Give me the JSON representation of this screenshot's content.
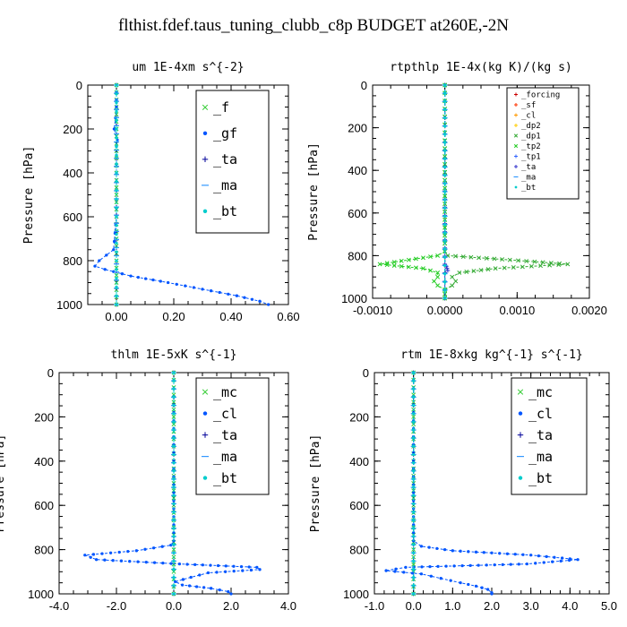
{
  "figure_title": "flthist.fdef.taus_tuning_clubb_c8p  BUDGET at260E,-2N",
  "chart_data": [
    {
      "type": "line",
      "title": "um  1E-4xm s^{-2}",
      "ylabel": "Pressure [hPa]",
      "xlim": [
        -0.1,
        0.6
      ],
      "ylim": [
        1000,
        0
      ],
      "xticks": [
        "0.00",
        "0.20",
        "0.40",
        "0.60"
      ],
      "xtick_values": [
        0,
        0.2,
        0.4,
        0.6
      ],
      "yticks": [
        "0",
        "200",
        "400",
        "600",
        "800",
        "1000"
      ],
      "ytick_values": [
        0,
        200,
        400,
        600,
        800,
        1000
      ],
      "legend": {
        "position": "top-right",
        "items": [
          "_f",
          "_gf",
          "_ta",
          "_ma",
          "_bt"
        ]
      },
      "series": [
        {
          "name": "_f",
          "color": "#33cc33",
          "marker": "x",
          "p": [
            0,
            100,
            200,
            300,
            400,
            500,
            600,
            700,
            800,
            900,
            1000
          ],
          "v": [
            0,
            0,
            0,
            0,
            0,
            0,
            0,
            0,
            0,
            0,
            0
          ]
        },
        {
          "name": "_gf",
          "color": "#0055ff",
          "marker": "dot",
          "p": [
            0,
            100,
            150,
            200,
            250,
            280,
            400,
            600,
            750,
            800,
            825,
            840,
            870,
            900,
            930,
            960,
            985,
            1000
          ],
          "v": [
            0,
            0,
            -0.003,
            -0.008,
            0.003,
            0,
            0,
            0,
            -0.01,
            -0.06,
            -0.075,
            -0.04,
            0.05,
            0.18,
            0.3,
            0.42,
            0.5,
            0.53
          ]
        },
        {
          "name": "_ta",
          "color": "#000099",
          "marker": "plus",
          "p": [
            0,
            1000
          ],
          "v": [
            0,
            0
          ]
        },
        {
          "name": "_ma",
          "color": "#3399ff",
          "marker": "dash",
          "p": [
            0,
            1000
          ],
          "v": [
            0,
            0
          ]
        },
        {
          "name": "_bt",
          "color": "#00cccc",
          "marker": "dot",
          "p": [
            0,
            200,
            400,
            600,
            800,
            1000
          ],
          "v": [
            0,
            0,
            0,
            0,
            0,
            0
          ]
        }
      ]
    },
    {
      "type": "line",
      "title": "rtpthlp  1E-4x(kg K)/(kg s)",
      "ylabel": "Pressure [hPa]",
      "xlim": [
        -0.001,
        0.002
      ],
      "ylim": [
        1000,
        0
      ],
      "xticks": [
        "-0.0010",
        "0.0000",
        "0.0010",
        "0.0020"
      ],
      "xtick_values": [
        -0.001,
        0,
        0.001,
        0.002
      ],
      "yticks": [
        "0",
        "200",
        "400",
        "600",
        "800",
        "1000"
      ],
      "ytick_values": [
        0,
        200,
        400,
        600,
        800,
        1000
      ],
      "legend": {
        "position": "top-right",
        "items": [
          "_forcing",
          "_sf",
          "_cl",
          "_dp2",
          "_dp1",
          "_tp2",
          "_tp1",
          "_ta",
          "_ma",
          "_bt"
        ]
      },
      "series": [
        {
          "name": "_forcing",
          "color": "#cc0000",
          "marker": "plus",
          "p": [
            0,
            1000
          ],
          "v": [
            0,
            0
          ]
        },
        {
          "name": "_sf",
          "color": "#ff3300",
          "marker": "plus",
          "p": [
            0,
            1000
          ],
          "v": [
            0,
            0
          ]
        },
        {
          "name": "_cl",
          "color": "#ff9900",
          "marker": "plus",
          "p": [
            0,
            1000
          ],
          "v": [
            0,
            0
          ]
        },
        {
          "name": "_dp2",
          "color": "#ffcc00",
          "marker": "plus",
          "p": [
            0,
            1000
          ],
          "v": [
            0,
            0
          ]
        },
        {
          "name": "_dp1",
          "color": "#33aa33",
          "marker": "x",
          "p": [
            0,
            780,
            800,
            820,
            840,
            850,
            860,
            880,
            900,
            920,
            940,
            960,
            980,
            1000
          ],
          "v": [
            0,
            0,
            4e-05,
            0.0009,
            0.0017,
            0.0012,
            0.0007,
            0.0002,
            0.0001,
            0.00015,
            0.0001,
            0,
            0,
            0
          ]
        },
        {
          "name": "_tp2",
          "color": "#22cc22",
          "marker": "x",
          "p": [
            0,
            780,
            800,
            820,
            840,
            850,
            860,
            880,
            900,
            920,
            940,
            960,
            980,
            1000
          ],
          "v": [
            0,
            0,
            -0.0001,
            -0.0005,
            -0.0009,
            -0.0006,
            -0.0003,
            -0.0001,
            -0.0001,
            -0.00015,
            -0.0001,
            0,
            0,
            0
          ]
        },
        {
          "name": "_tp1",
          "color": "#3366ff",
          "marker": "plus",
          "p": [
            0,
            1000
          ],
          "v": [
            0,
            0
          ]
        },
        {
          "name": "_ta",
          "color": "#3333cc",
          "marker": "plus",
          "p": [
            0,
            840,
            850,
            860,
            870,
            880,
            1000
          ],
          "v": [
            0,
            0,
            2e-05,
            3e-05,
            4e-05,
            0,
            0
          ]
        },
        {
          "name": "_ma",
          "color": "#3399ff",
          "marker": "dash",
          "p": [
            0,
            1000
          ],
          "v": [
            0,
            0
          ]
        },
        {
          "name": "_bt",
          "color": "#00cccc",
          "marker": "dot",
          "p": [
            0,
            1000
          ],
          "v": [
            0,
            0
          ]
        }
      ]
    },
    {
      "type": "line",
      "title": "thlm  1E-5xK s^{-1}",
      "ylabel": "Pressure [hPa]",
      "xlim": [
        -4,
        4
      ],
      "ylim": [
        1000,
        0
      ],
      "xticks": [
        "-4.0",
        "-2.0",
        "0.0",
        "2.0",
        "4.0"
      ],
      "xtick_values": [
        -4,
        -2,
        0,
        2,
        4
      ],
      "yticks": [
        "0",
        "200",
        "400",
        "600",
        "800",
        "1000"
      ],
      "ytick_values": [
        0,
        200,
        400,
        600,
        800,
        1000
      ],
      "legend": {
        "position": "top-right",
        "items": [
          "_mc",
          "_cl",
          "_ta",
          "_ma",
          "_bt"
        ]
      },
      "series": [
        {
          "name": "_mc",
          "color": "#33cc33",
          "marker": "x",
          "p": [
            0,
            100,
            200,
            300,
            400,
            500,
            600,
            700,
            800,
            900,
            1000
          ],
          "v": [
            0,
            0,
            0,
            0,
            0,
            0,
            0,
            0,
            0,
            0,
            0
          ]
        },
        {
          "name": "_cl",
          "color": "#0055ff",
          "marker": "dot",
          "p": [
            0,
            760,
            780,
            805,
            825,
            845,
            865,
            880,
            890,
            905,
            925,
            945,
            960,
            975,
            990,
            1000
          ],
          "v": [
            0,
            0,
            -0.1,
            -1.3,
            -3.1,
            -2.7,
            0.2,
            2.9,
            3.0,
            1.2,
            0.6,
            0.05,
            0.3,
            1.3,
            1.9,
            2.0
          ]
        },
        {
          "name": "_ta",
          "color": "#000099",
          "marker": "plus",
          "p": [
            0,
            1000
          ],
          "v": [
            0,
            0
          ]
        },
        {
          "name": "_ma",
          "color": "#3399ff",
          "marker": "dash",
          "p": [
            0,
            1000
          ],
          "v": [
            0,
            0
          ]
        },
        {
          "name": "_bt",
          "color": "#00cccc",
          "marker": "dot",
          "p": [
            0,
            1000
          ],
          "v": [
            0,
            0
          ]
        }
      ]
    },
    {
      "type": "line",
      "title": "rtm  1E-8xkg kg^{-1} s^{-1}",
      "ylabel": "Pressure [hPa]",
      "xlim": [
        -1,
        5
      ],
      "ylim": [
        1000,
        0
      ],
      "xticks": [
        "-1.0",
        "0.0",
        "1.0",
        "2.0",
        "3.0",
        "4.0",
        "5.0"
      ],
      "xtick_values": [
        -1,
        0,
        1,
        2,
        3,
        4,
        5
      ],
      "yticks": [
        "0",
        "200",
        "400",
        "600",
        "800",
        "1000"
      ],
      "ytick_values": [
        0,
        200,
        400,
        600,
        800,
        1000
      ],
      "legend": {
        "position": "top-right",
        "items": [
          "_mc",
          "_cl",
          "_ta",
          "_ma",
          "_bt"
        ]
      },
      "series": [
        {
          "name": "_mc",
          "color": "#33cc33",
          "marker": "x",
          "p": [
            0,
            100,
            200,
            300,
            400,
            500,
            600,
            700,
            800,
            900,
            1000
          ],
          "v": [
            0,
            0,
            0,
            0,
            0,
            0,
            0,
            0,
            0,
            0,
            0
          ]
        },
        {
          "name": "_cl",
          "color": "#0055ff",
          "marker": "dot",
          "p": [
            0,
            760,
            785,
            805,
            825,
            845,
            865,
            880,
            895,
            910,
            930,
            950,
            965,
            980,
            995,
            1000
          ],
          "v": [
            0,
            0,
            0.2,
            1.0,
            3.0,
            4.2,
            2.9,
            -0.2,
            -0.7,
            0.2,
            0.7,
            1.2,
            1.6,
            1.9,
            2.0,
            2.0
          ]
        },
        {
          "name": "_ta",
          "color": "#000099",
          "marker": "plus",
          "p": [
            0,
            1000
          ],
          "v": [
            0,
            0
          ]
        },
        {
          "name": "_ma",
          "color": "#3399ff",
          "marker": "dash",
          "p": [
            0,
            1000
          ],
          "v": [
            0,
            0
          ]
        },
        {
          "name": "_bt",
          "color": "#00cccc",
          "marker": "dot",
          "p": [
            0,
            1000
          ],
          "v": [
            0,
            0
          ]
        }
      ]
    }
  ]
}
